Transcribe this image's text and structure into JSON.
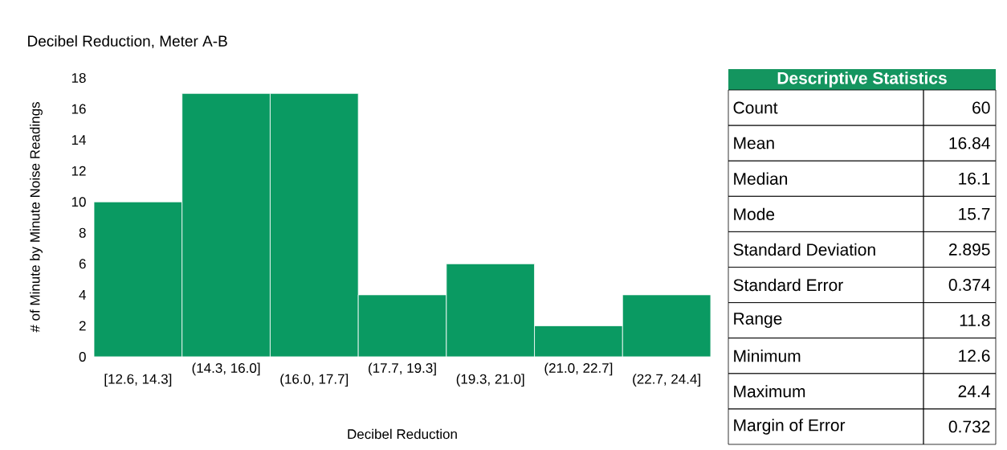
{
  "chart_data": [
    {
      "type": "bar",
      "title": "Decibel Reduction, Meter A-B",
      "xlabel": "Decibel Reduction",
      "ylabel": "# of Minute by Minute Noise Readings",
      "categories": [
        "[12.6, 14.3]",
        "(14.3, 16.0]",
        "(16.0, 17.7]",
        "(17.7, 19.3]",
        "(19.3, 21.0]",
        "(21.0, 22.7]",
        "(22.7, 24.4]"
      ],
      "values": [
        10,
        17,
        17,
        4,
        6,
        2,
        4
      ],
      "color": "#0a9a62",
      "ylim": [
        0,
        18
      ],
      "yticks": [
        0,
        2,
        4,
        6,
        8,
        10,
        12,
        14,
        16,
        18
      ],
      "grid": false
    },
    {
      "type": "other",
      "title": "Descriptive Statistics",
      "color": "#14955f",
      "categories": [
        "Count",
        "Mean",
        "Median",
        "Mode",
        "Standard Deviation",
        "Standard Error",
        "Range",
        "Minimum",
        "Maximum",
        "Margin of Error"
      ],
      "values": [
        60,
        16.84,
        16.1,
        15.7,
        2.895,
        0.374,
        11.8,
        12.6,
        24.4,
        0.732
      ],
      "data_labels": true
    }
  ]
}
